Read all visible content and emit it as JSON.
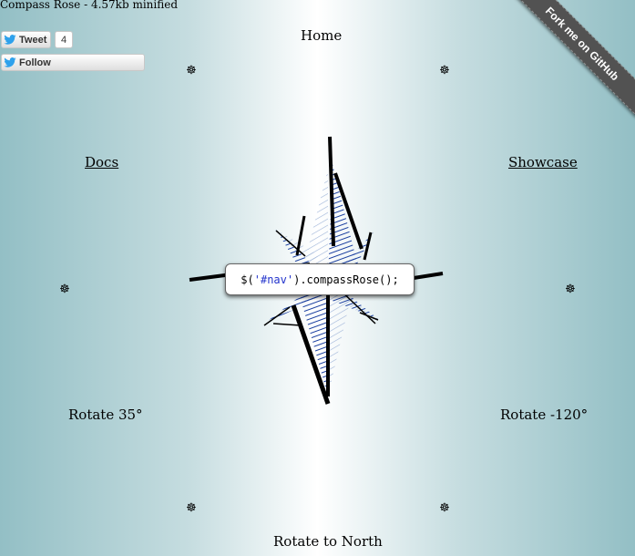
{
  "header": {
    "title": "Compass Rose - 4.57kb minified"
  },
  "social": {
    "tweet_label": "Tweet",
    "tweet_count": "4",
    "follow_label": "Follow",
    "bird_color": "#2ea1ec"
  },
  "ribbon": {
    "label": "Fork me on GitHub"
  },
  "nav": {
    "home": "Home",
    "docs": "Docs",
    "showcase": "Showcase",
    "rotate_35": "Rotate 35°",
    "rotate_neg120": "Rotate -120°",
    "rotate_north": "Rotate to North"
  },
  "ornament": {
    "glyph": "☸"
  },
  "code": {
    "prefix": "$(",
    "selector": "'#nav'",
    "suffix": ").compassRose();"
  },
  "colors": {
    "rose_fill": "#1a3fa0",
    "rose_light": "#9eb4d8"
  }
}
